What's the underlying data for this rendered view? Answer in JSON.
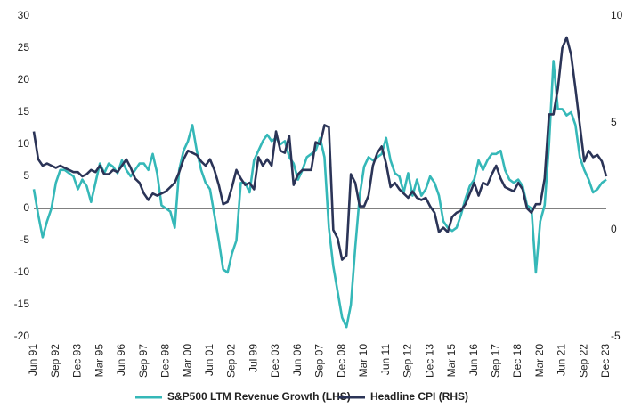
{
  "chart_data": {
    "type": "line",
    "categories": [
      "Jun 91",
      null,
      null,
      null,
      null,
      "Sep 92",
      null,
      null,
      null,
      null,
      "Dec 93",
      null,
      null,
      null,
      null,
      "Mar 95",
      null,
      null,
      null,
      null,
      "Jun 96",
      null,
      null,
      null,
      null,
      "Sep 97",
      null,
      null,
      null,
      null,
      "Dec 98",
      null,
      null,
      null,
      null,
      "Mar 00",
      null,
      null,
      null,
      null,
      "Jun 01",
      null,
      null,
      null,
      null,
      "Sep 02",
      null,
      null,
      null,
      null,
      "Jul 99",
      null,
      null,
      null,
      null,
      "Dec 03",
      null,
      null,
      null,
      null,
      "Jun 06",
      null,
      null,
      null,
      null,
      "Sep 07",
      null,
      null,
      null,
      null,
      "Dec 08",
      null,
      null,
      null,
      null,
      "Mar 10",
      null,
      null,
      null,
      null,
      "Jun 11",
      null,
      null,
      null,
      null,
      "Sep 12",
      null,
      null,
      null,
      null,
      "Dec 13",
      null,
      null,
      null,
      null,
      "Mar 15",
      null,
      null,
      null,
      null,
      "Jun 16",
      null,
      null,
      null,
      null,
      "Sep 17",
      null,
      null,
      null,
      null,
      "Dec 18",
      null,
      null,
      null,
      null,
      "Mar 20",
      null,
      null,
      null,
      null,
      "Jun 21",
      null,
      null,
      null,
      null,
      "Sep 22",
      null,
      null,
      null,
      null,
      "Dec 23"
    ],
    "series": [
      {
        "name": "S&P500 LTM Revenue Growth (LHS)",
        "color": "#35b8b8",
        "values": [
          3,
          -1,
          -4.5,
          -2,
          0,
          4,
          6,
          6,
          5.5,
          5,
          3,
          4.5,
          3.5,
          1,
          4,
          7,
          5.5,
          7,
          6.5,
          5.5,
          7.5,
          6,
          5,
          6,
          7,
          7,
          6,
          8.5,
          5.5,
          0.5,
          0,
          -0.5,
          -3,
          6,
          9,
          10.5,
          13,
          9,
          6,
          4,
          3,
          -1,
          -5,
          -9.5,
          -10,
          -7,
          -5,
          4,
          4,
          2.5,
          7.5,
          9,
          10.5,
          11.5,
          10.5,
          11,
          10,
          10.5,
          8,
          7,
          4.5,
          6,
          8,
          8.5,
          9,
          11,
          8,
          -3,
          -9,
          -13,
          -17,
          -18.5,
          -15,
          -6,
          2,
          6.5,
          8,
          7.5,
          8,
          8.5,
          11,
          7.5,
          5.5,
          5,
          2.5,
          5.5,
          2,
          4.5,
          2,
          3,
          5,
          4,
          2,
          -2,
          -3,
          -3.5,
          -3,
          -1,
          1.5,
          3.5,
          4.5,
          7.5,
          6,
          7.5,
          8.5,
          8.5,
          9,
          6,
          4.5,
          4,
          4.5,
          3.5,
          0.5,
          0,
          -10,
          -2,
          0.5,
          10,
          23,
          15.5,
          15.5,
          14.5,
          15,
          13,
          8,
          6,
          4.5,
          2.5,
          3,
          4,
          4.5
        ]
      },
      {
        "name": "Headline CPI (RHS)",
        "color": "#2b3457",
        "axis": "y2",
        "values": [
          4.6,
          3.3,
          3.0,
          3.1,
          3.0,
          2.9,
          3.0,
          2.9,
          2.8,
          2.7,
          2.7,
          2.5,
          2.6,
          2.8,
          2.7,
          3.0,
          2.6,
          2.6,
          2.8,
          2.7,
          3.0,
          3.3,
          2.9,
          2.4,
          2.2,
          1.7,
          1.4,
          1.7,
          1.6,
          1.7,
          1.8,
          2.0,
          2.2,
          2.7,
          3.3,
          3.7,
          3.6,
          3.5,
          3.2,
          3.0,
          3.3,
          2.8,
          2.1,
          1.2,
          1.3,
          2.0,
          2.8,
          2.4,
          2.1,
          2.2,
          1.9,
          3.4,
          3.0,
          3.3,
          3.0,
          4.6,
          3.7,
          3.6,
          4.4,
          2.1,
          2.6,
          2.8,
          2.8,
          2.8,
          4.1,
          4.0,
          4.9,
          4.8,
          0,
          -0.4,
          -1.4,
          -1.2,
          2.6,
          2.2,
          1.1,
          1.1,
          1.6,
          3.0,
          3.6,
          3.9,
          3.1,
          2.0,
          2.2,
          1.9,
          1.7,
          1.5,
          1.8,
          1.5,
          1.4,
          1.5,
          1.1,
          0.8,
          -0.1,
          0.1,
          -0.1,
          0.6,
          0.8,
          0.9,
          1.2,
          1.7,
          2.2,
          1.6,
          2.2,
          2.1,
          2.6,
          3.0,
          2.4,
          2.0,
          1.9,
          1.8,
          2.2,
          1.9,
          1.0,
          0.8,
          1.2,
          1.2,
          2.4,
          5.4,
          5.4,
          6.6,
          8.5,
          9.0,
          8.2,
          6.6,
          4.9,
          3.2,
          3.7,
          3.4,
          3.5,
          3.2,
          2.5
        ]
      }
    ],
    "ylim": [
      -20,
      30
    ],
    "yticks": [
      -20,
      -15,
      -10,
      -5,
      0,
      5,
      10,
      15,
      20,
      25,
      30
    ],
    "y2lim": [
      -5,
      10
    ],
    "y2ticks": [
      -5,
      0,
      5,
      10
    ],
    "grid": false,
    "legend": "bottom"
  }
}
